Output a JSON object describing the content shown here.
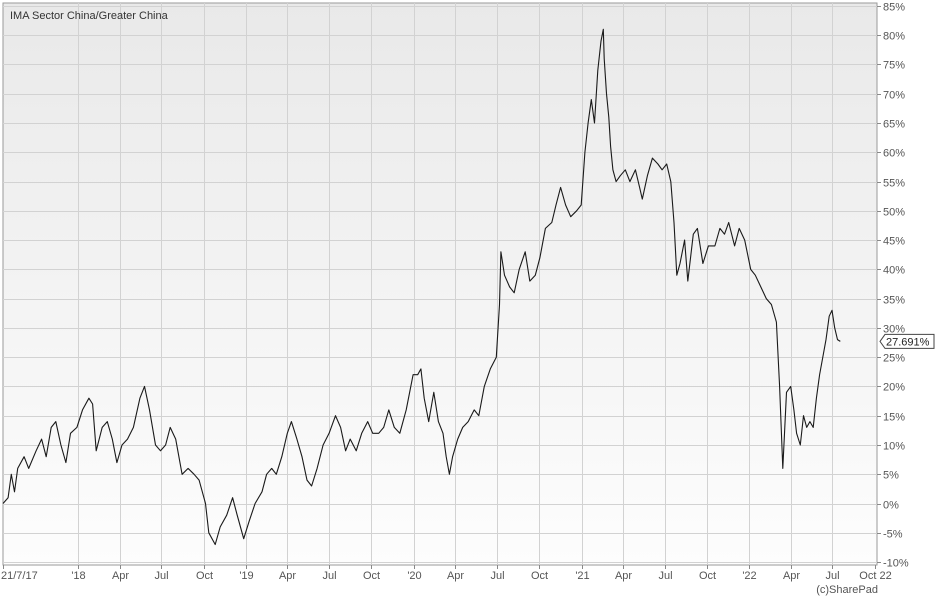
{
  "chart_data": {
    "type": "line",
    "title": "IMA Sector China/Greater China",
    "credit": "(c)SharePad",
    "last_value_label": "27.691%",
    "x_tick_labels": [
      "21/7/17",
      "'18",
      "Apr",
      "Jul",
      "Oct",
      "'19",
      "Apr",
      "Jul",
      "Oct",
      "'20",
      "Apr",
      "Jul",
      "Oct",
      "'21",
      "Apr",
      "Jul",
      "Oct",
      "'22",
      "Apr",
      "Jul",
      "Oct 22"
    ],
    "x_tick_dates": [
      "2017-07-21",
      "2018-01-01",
      "2018-04-01",
      "2018-07-01",
      "2018-10-01",
      "2019-01-01",
      "2019-04-01",
      "2019-07-01",
      "2019-10-01",
      "2020-01-01",
      "2020-04-01",
      "2020-07-01",
      "2020-10-01",
      "2021-01-01",
      "2021-04-01",
      "2021-07-01",
      "2021-10-01",
      "2022-01-01",
      "2022-04-01",
      "2022-07-01",
      "2022-10-01"
    ],
    "y_ticks": [
      -10,
      -5,
      0,
      5,
      10,
      15,
      20,
      25,
      30,
      35,
      40,
      45,
      50,
      55,
      60,
      65,
      70,
      75,
      80,
      85
    ],
    "y_unit": "%",
    "ylim": [
      -10.5,
      85.5
    ],
    "xlim": [
      "2017-07-21",
      "2022-10-06"
    ],
    "grid": true,
    "y_axis_side": "right",
    "series": [
      {
        "color": "#1a1a1a",
        "points": [
          [
            "2017-07-21",
            0
          ],
          [
            "2017-08-01",
            1
          ],
          [
            "2017-08-08",
            5
          ],
          [
            "2017-08-15",
            2
          ],
          [
            "2017-08-22",
            6
          ],
          [
            "2017-09-05",
            8
          ],
          [
            "2017-09-15",
            6
          ],
          [
            "2017-10-01",
            9
          ],
          [
            "2017-10-13",
            11
          ],
          [
            "2017-10-23",
            8
          ],
          [
            "2017-11-03",
            13
          ],
          [
            "2017-11-13",
            14
          ],
          [
            "2017-11-24",
            10
          ],
          [
            "2017-12-05",
            7
          ],
          [
            "2017-12-15",
            12
          ],
          [
            "2017-12-29",
            13
          ],
          [
            "2018-01-10",
            16
          ],
          [
            "2018-01-24",
            18
          ],
          [
            "2018-02-01",
            17
          ],
          [
            "2018-02-09",
            9
          ],
          [
            "2018-02-22",
            13
          ],
          [
            "2018-03-05",
            14
          ],
          [
            "2018-03-16",
            11
          ],
          [
            "2018-03-26",
            7
          ],
          [
            "2018-04-06",
            10
          ],
          [
            "2018-04-18",
            11
          ],
          [
            "2018-05-01",
            13
          ],
          [
            "2018-05-15",
            18
          ],
          [
            "2018-05-25",
            20
          ],
          [
            "2018-06-05",
            16
          ],
          [
            "2018-06-18",
            10
          ],
          [
            "2018-06-29",
            9
          ],
          [
            "2018-07-10",
            10
          ],
          [
            "2018-07-20",
            13
          ],
          [
            "2018-08-01",
            11
          ],
          [
            "2018-08-15",
            5
          ],
          [
            "2018-08-28",
            6
          ],
          [
            "2018-09-10",
            5
          ],
          [
            "2018-09-21",
            4
          ],
          [
            "2018-10-05",
            0
          ],
          [
            "2018-10-12",
            -5
          ],
          [
            "2018-10-26",
            -7
          ],
          [
            "2018-11-06",
            -4
          ],
          [
            "2018-11-20",
            -2
          ],
          [
            "2018-12-03",
            1
          ],
          [
            "2018-12-13",
            -2
          ],
          [
            "2018-12-27",
            -6
          ],
          [
            "2019-01-08",
            -3
          ],
          [
            "2019-01-21",
            0
          ],
          [
            "2019-02-05",
            2
          ],
          [
            "2019-02-15",
            5
          ],
          [
            "2019-02-26",
            6
          ],
          [
            "2019-03-08",
            5
          ],
          [
            "2019-03-20",
            8
          ],
          [
            "2019-04-01",
            12
          ],
          [
            "2019-04-10",
            14
          ],
          [
            "2019-04-22",
            11
          ],
          [
            "2019-05-03",
            8
          ],
          [
            "2019-05-14",
            4
          ],
          [
            "2019-05-24",
            3
          ],
          [
            "2019-06-05",
            6
          ],
          [
            "2019-06-18",
            10
          ],
          [
            "2019-07-01",
            12
          ],
          [
            "2019-07-15",
            15
          ],
          [
            "2019-07-26",
            13
          ],
          [
            "2019-08-06",
            9
          ],
          [
            "2019-08-16",
            11
          ],
          [
            "2019-08-29",
            9
          ],
          [
            "2019-09-10",
            12
          ],
          [
            "2019-09-23",
            14
          ],
          [
            "2019-10-04",
            12
          ],
          [
            "2019-10-17",
            12
          ],
          [
            "2019-10-28",
            13
          ],
          [
            "2019-11-08",
            16
          ],
          [
            "2019-11-20",
            13
          ],
          [
            "2019-12-02",
            12
          ],
          [
            "2019-12-16",
            16
          ],
          [
            "2019-12-31",
            22
          ],
          [
            "2020-01-10",
            22
          ],
          [
            "2020-01-17",
            23
          ],
          [
            "2020-01-24",
            18
          ],
          [
            "2020-02-03",
            14
          ],
          [
            "2020-02-14",
            19
          ],
          [
            "2020-02-24",
            14
          ],
          [
            "2020-03-05",
            12
          ],
          [
            "2020-03-12",
            8
          ],
          [
            "2020-03-19",
            5
          ],
          [
            "2020-03-26",
            8
          ],
          [
            "2020-04-06",
            11
          ],
          [
            "2020-04-17",
            13
          ],
          [
            "2020-04-29",
            14
          ],
          [
            "2020-05-12",
            16
          ],
          [
            "2020-05-22",
            15
          ],
          [
            "2020-06-03",
            20
          ],
          [
            "2020-06-16",
            23
          ],
          [
            "2020-06-29",
            25
          ],
          [
            "2020-07-06",
            34
          ],
          [
            "2020-07-09",
            43
          ],
          [
            "2020-07-17",
            39
          ],
          [
            "2020-07-28",
            37
          ],
          [
            "2020-08-07",
            36
          ],
          [
            "2020-08-18",
            40
          ],
          [
            "2020-08-31",
            43
          ],
          [
            "2020-09-10",
            38
          ],
          [
            "2020-09-22",
            39
          ],
          [
            "2020-10-02",
            42
          ],
          [
            "2020-10-14",
            47
          ],
          [
            "2020-10-28",
            48
          ],
          [
            "2020-11-06",
            51
          ],
          [
            "2020-11-16",
            54
          ],
          [
            "2020-11-27",
            51
          ],
          [
            "2020-12-08",
            49
          ],
          [
            "2020-12-21",
            50
          ],
          [
            "2020-12-31",
            51
          ],
          [
            "2021-01-08",
            60
          ],
          [
            "2021-01-15",
            65
          ],
          [
            "2021-01-22",
            69
          ],
          [
            "2021-01-29",
            65
          ],
          [
            "2021-02-05",
            74
          ],
          [
            "2021-02-12",
            79
          ],
          [
            "2021-02-17",
            81
          ],
          [
            "2021-02-19",
            76
          ],
          [
            "2021-02-24",
            70
          ],
          [
            "2021-03-01",
            66
          ],
          [
            "2021-03-05",
            61
          ],
          [
            "2021-03-10",
            57
          ],
          [
            "2021-03-17",
            55
          ],
          [
            "2021-03-26",
            56
          ],
          [
            "2021-04-06",
            57
          ],
          [
            "2021-04-16",
            55
          ],
          [
            "2021-04-28",
            57
          ],
          [
            "2021-05-07",
            54
          ],
          [
            "2021-05-13",
            52
          ],
          [
            "2021-05-24",
            56
          ],
          [
            "2021-06-04",
            59
          ],
          [
            "2021-06-16",
            58
          ],
          [
            "2021-06-25",
            57
          ],
          [
            "2021-07-05",
            58
          ],
          [
            "2021-07-14",
            55
          ],
          [
            "2021-07-21",
            48
          ],
          [
            "2021-07-27",
            39
          ],
          [
            "2021-08-03",
            41
          ],
          [
            "2021-08-13",
            45
          ],
          [
            "2021-08-20",
            38
          ],
          [
            "2021-09-01",
            46
          ],
          [
            "2021-09-10",
            47
          ],
          [
            "2021-09-22",
            41
          ],
          [
            "2021-10-04",
            44
          ],
          [
            "2021-10-18",
            44
          ],
          [
            "2021-10-29",
            47
          ],
          [
            "2021-11-08",
            46
          ],
          [
            "2021-11-17",
            48
          ],
          [
            "2021-11-30",
            44
          ],
          [
            "2021-12-10",
            47
          ],
          [
            "2021-12-22",
            45
          ],
          [
            "2022-01-04",
            40
          ],
          [
            "2022-01-14",
            39
          ],
          [
            "2022-01-26",
            37
          ],
          [
            "2022-02-07",
            35
          ],
          [
            "2022-02-18",
            34
          ],
          [
            "2022-03-01",
            31
          ],
          [
            "2022-03-08",
            20
          ],
          [
            "2022-03-15",
            6
          ],
          [
            "2022-03-23",
            19
          ],
          [
            "2022-04-01",
            20
          ],
          [
            "2022-04-08",
            16
          ],
          [
            "2022-04-14",
            12
          ],
          [
            "2022-04-22",
            10
          ],
          [
            "2022-04-29",
            15
          ],
          [
            "2022-05-06",
            13
          ],
          [
            "2022-05-13",
            14
          ],
          [
            "2022-05-20",
            13
          ],
          [
            "2022-05-27",
            18
          ],
          [
            "2022-06-03",
            22
          ],
          [
            "2022-06-10",
            25
          ],
          [
            "2022-06-17",
            28
          ],
          [
            "2022-06-24",
            32
          ],
          [
            "2022-06-30",
            33
          ],
          [
            "2022-07-06",
            30
          ],
          [
            "2022-07-12",
            28
          ],
          [
            "2022-07-18",
            27.691
          ]
        ]
      }
    ]
  }
}
